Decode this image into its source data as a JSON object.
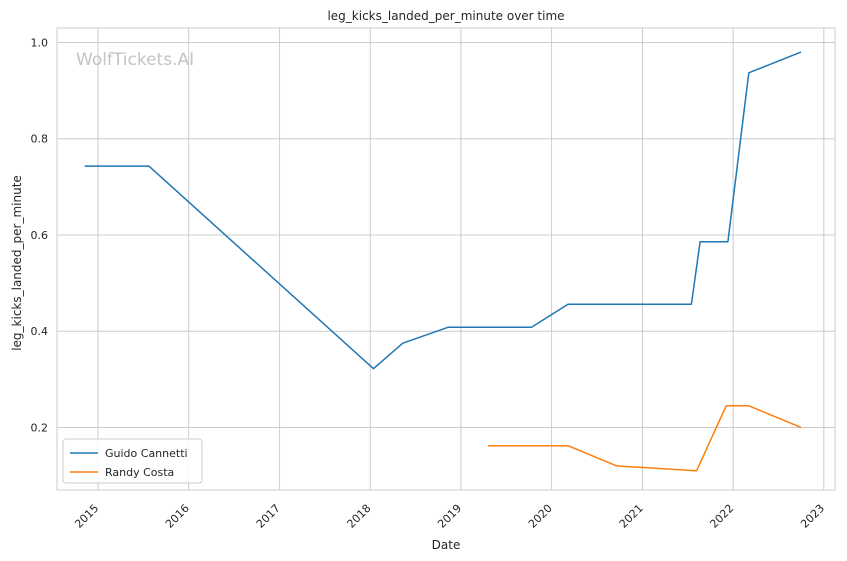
{
  "chart_data": {
    "type": "line",
    "title": "leg_kicks_landed_per_minute over time",
    "xlabel": "Date",
    "ylabel": "leg_kicks_landed_per_minute",
    "watermark": "WolfTickets.AI",
    "x_ticks": [
      "2015",
      "2016",
      "2017",
      "2018",
      "2019",
      "2020",
      "2021",
      "2022",
      "2023"
    ],
    "y_ticks": [
      "0.2",
      "0.4",
      "0.6",
      "0.8",
      "1.0"
    ],
    "xlim": [
      "2014-07-20",
      "2023-02-15"
    ],
    "ylim": [
      0.07,
      1.03
    ],
    "grid": true,
    "legend_position": "lower-left",
    "series": [
      {
        "name": "Guido Cannetti",
        "color": "#1f77b4",
        "points": [
          [
            "2014-11-08",
            0.743
          ],
          [
            "2015-07-25",
            0.743
          ],
          [
            "2018-01-14",
            0.322
          ],
          [
            "2018-05-12",
            0.375
          ],
          [
            "2018-11-10",
            0.408
          ],
          [
            "2019-10-12",
            0.408
          ],
          [
            "2020-03-07",
            0.456
          ],
          [
            "2021-07-17",
            0.456
          ],
          [
            "2021-08-21",
            0.586
          ],
          [
            "2021-12-11",
            0.586
          ],
          [
            "2022-03-05",
            0.937
          ],
          [
            "2022-10-01",
            0.98
          ]
        ]
      },
      {
        "name": "Randy Costa",
        "color": "#ff7f0e",
        "points": [
          [
            "2019-04-20",
            0.162
          ],
          [
            "2020-03-07",
            0.162
          ],
          [
            "2020-09-19",
            0.12
          ],
          [
            "2021-08-07",
            0.11
          ],
          [
            "2021-12-04",
            0.245
          ],
          [
            "2022-03-05",
            0.245
          ],
          [
            "2022-10-01",
            0.2
          ]
        ]
      }
    ]
  }
}
